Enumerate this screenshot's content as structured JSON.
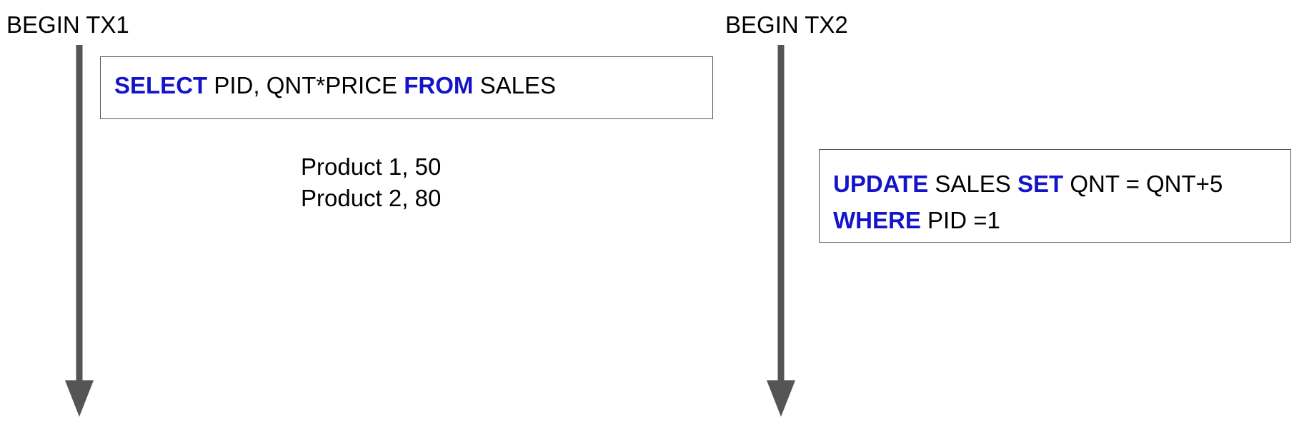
{
  "diagram": {
    "tx1": {
      "begin_label": "BEGIN TX1",
      "select_statement": {
        "kw_select": "SELECT",
        "columns": "PID, QNT*PRICE",
        "kw_from": "FROM",
        "table": "SALES"
      },
      "result_rows": [
        "Product 1, 50",
        "Product 2, 80"
      ]
    },
    "tx2": {
      "begin_label": "BEGIN TX2",
      "update_statement": {
        "kw_update": "UPDATE",
        "table": "SALES",
        "kw_set": "SET",
        "assignment": "QNT = QNT+5",
        "kw_where": "WHERE",
        "condition": "PID =1"
      }
    },
    "colors": {
      "keyword": "#1414c8",
      "timeline": "#555555",
      "box_border": "#555555",
      "text": "#000000"
    }
  }
}
